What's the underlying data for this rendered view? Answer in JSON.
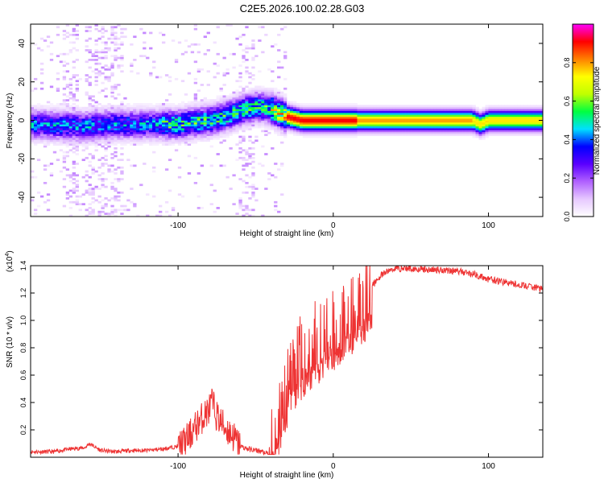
{
  "title": "C2E5.2026.100.02.28.G03",
  "chart_data": [
    {
      "type": "heatmap",
      "title": "C2E5.2026.100.02.28.G03",
      "xlabel": "Height of straight line (km)",
      "ylabel": "Frequency (Hz)",
      "xlim": [
        -195,
        135
      ],
      "ylim": [
        -50,
        50
      ],
      "xticks": [
        -100,
        0,
        100
      ],
      "xtick_labels": [
        "-100",
        "0",
        "100"
      ],
      "yticks": [
        -40,
        -20,
        0,
        20,
        40
      ],
      "ytick_labels": [
        "-40",
        "-20",
        "0",
        "20",
        "40"
      ],
      "ridge_frequency": {
        "x": [
          -195,
          -160,
          -140,
          -120,
          -100,
          -80,
          -70,
          -60,
          -50,
          -45,
          -40,
          -35,
          -30,
          -25,
          -20,
          -10,
          0,
          10,
          20,
          50,
          90,
          95,
          100,
          135
        ],
        "y": [
          -2,
          -3,
          -2,
          -2,
          -2,
          0,
          2,
          5,
          7,
          7,
          6,
          4,
          2,
          1,
          0,
          0,
          0,
          0,
          0,
          0,
          0,
          -2,
          0,
          0
        ]
      },
      "colorbar": {
        "label": "Normalized spectral amplitude",
        "range": [
          0,
          1
        ],
        "ticks": [
          0.0,
          0.2,
          0.4,
          0.6,
          0.8
        ],
        "tick_labels": [
          "0.0",
          "0.2",
          "0.4",
          "0.6",
          "0.8"
        ],
        "colormap": [
          "#ffffff",
          "#e6c8ff",
          "#b060ff",
          "#5a00ff",
          "#0000ff",
          "#00e0ff",
          "#00ff40",
          "#c0ff00",
          "#ffff00",
          "#ff8000",
          "#ff0000",
          "#ff00ff"
        ]
      }
    },
    {
      "type": "line",
      "xlabel": "Height of straight line (km)",
      "ylabel": "SNR (10 * v/v)",
      "scale_note": "(x10",
      "scale_exp": "4",
      "scale_close": ")",
      "xlim": [
        -195,
        135
      ],
      "ylim": [
        0,
        1.4
      ],
      "xticks": [
        -100,
        0,
        100
      ],
      "xtick_labels": [
        "-100",
        "0",
        "100"
      ],
      "yticks": [
        0.2,
        0.4,
        0.6,
        0.8,
        1.0,
        1.2,
        1.4
      ],
      "ytick_labels": [
        "0.2",
        "0.4",
        "0.6",
        "0.8",
        "1.0",
        "1.2",
        "1.4"
      ],
      "color": "#ee3333",
      "series": [
        {
          "name": "SNR",
          "x": [
            -195,
            -180,
            -170,
            -160,
            -157,
            -150,
            -140,
            -130,
            -120,
            -110,
            -100,
            -95,
            -90,
            -85,
            -80,
            -78,
            -75,
            -70,
            -65,
            -60,
            -55,
            -50,
            -45,
            -40,
            -38,
            -35,
            -32,
            -30,
            -28,
            -25,
            -22,
            -20,
            -15,
            -10,
            -5,
            0,
            5,
            10,
            15,
            20,
            25,
            30,
            35,
            40,
            50,
            60,
            70,
            80,
            90,
            100,
            110,
            120,
            130,
            135
          ],
          "y": [
            0.04,
            0.04,
            0.06,
            0.07,
            0.1,
            0.05,
            0.04,
            0.05,
            0.05,
            0.06,
            0.08,
            0.12,
            0.2,
            0.28,
            0.35,
            0.4,
            0.3,
            0.22,
            0.16,
            0.08,
            0.06,
            0.05,
            0.04,
            0.04,
            0.1,
            0.3,
            0.45,
            0.5,
            0.6,
            0.65,
            0.7,
            0.75,
            0.8,
            0.85,
            0.9,
            0.95,
            1.0,
            1.05,
            1.1,
            1.15,
            1.25,
            1.32,
            1.36,
            1.38,
            1.38,
            1.37,
            1.37,
            1.36,
            1.34,
            1.3,
            1.28,
            1.26,
            1.24,
            1.23
          ]
        }
      ]
    }
  ]
}
